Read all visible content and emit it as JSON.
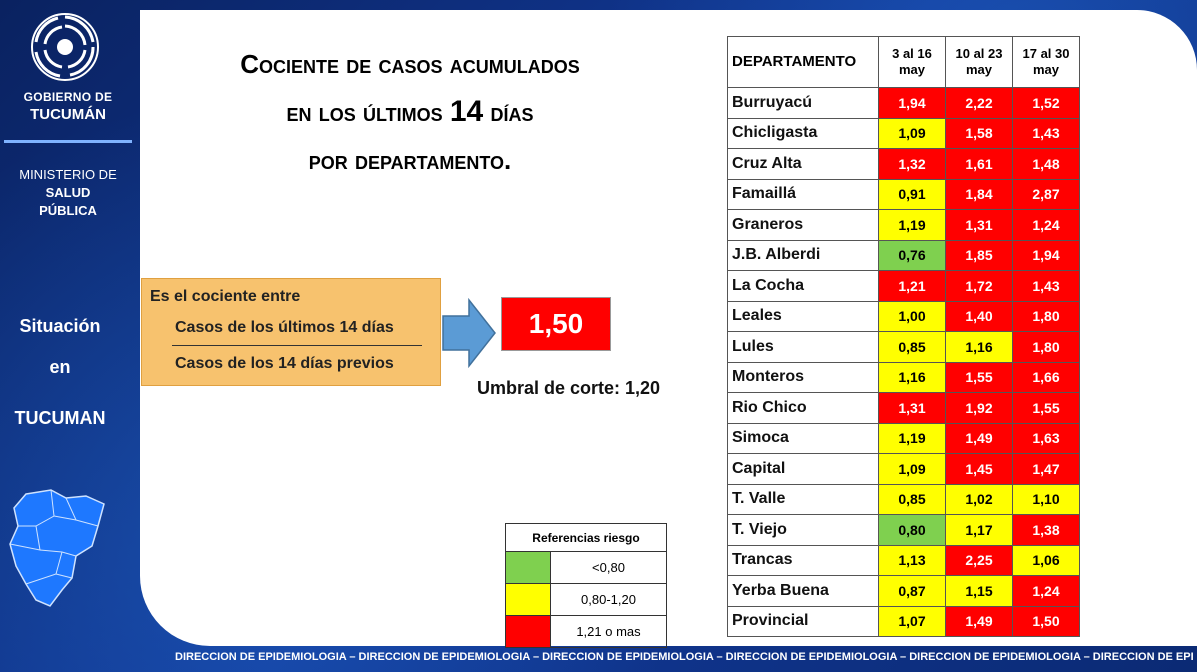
{
  "sidebar": {
    "org_line1": "GOBIERNO DE",
    "org_line2": "TUCUMÁN",
    "ministry_line1": "MINISTERIO DE",
    "ministry_line2": "SALUD",
    "ministry_line3": "PÚBLICA",
    "situation_line1": "Situación",
    "situation_line2": "en",
    "situation_line3": "TUCUMAN"
  },
  "title": {
    "line1_a": "Cociente de casos acumulados",
    "line2_a": "en los últimos ",
    "line2_b": "14",
    "line2_c": " días",
    "line3": "por departamento."
  },
  "formula": {
    "intro": "Es el cociente entre",
    "numerator": "Casos de los últimos 14 días",
    "denominator": "Casos de los 14 días previos"
  },
  "result": {
    "value": "1,50",
    "threshold": "Umbral de corte: 1,20"
  },
  "references": {
    "header": "Referencias riesgo",
    "items": [
      {
        "label": "<0,80",
        "color": "#7fd04f"
      },
      {
        "label": "0,80-1,20",
        "color": "#ffff00"
      },
      {
        "label": "1,21 o mas",
        "color": "#ff0000"
      }
    ]
  },
  "table": {
    "headers": [
      "DEPARTAMENTO",
      "3 al 16 may",
      "10 al 23 may",
      "17 al 30 may"
    ],
    "header_lines": [
      [
        "3 al 16",
        "may"
      ],
      [
        "10 al 23",
        "may"
      ],
      [
        "17 al 30",
        "may"
      ]
    ],
    "rows": [
      {
        "name": "Burruyacú",
        "values": [
          "1,94",
          "2,22",
          "1,52"
        ],
        "levels": [
          "r",
          "r",
          "r"
        ]
      },
      {
        "name": "Chicligasta",
        "values": [
          "1,09",
          "1,58",
          "1,43"
        ],
        "levels": [
          "y",
          "r",
          "r"
        ]
      },
      {
        "name": "Cruz Alta",
        "values": [
          "1,32",
          "1,61",
          "1,48"
        ],
        "levels": [
          "r",
          "r",
          "r"
        ]
      },
      {
        "name": "Famaillá",
        "values": [
          "0,91",
          "1,84",
          "2,87"
        ],
        "levels": [
          "y",
          "r",
          "r"
        ]
      },
      {
        "name": "Graneros",
        "values": [
          "1,19",
          "1,31",
          "1,24"
        ],
        "levels": [
          "y",
          "r",
          "r"
        ]
      },
      {
        "name": "J.B. Alberdi",
        "values": [
          "0,76",
          "1,85",
          "1,94"
        ],
        "levels": [
          "g",
          "r",
          "r"
        ]
      },
      {
        "name": "La Cocha",
        "values": [
          "1,21",
          "1,72",
          "1,43"
        ],
        "levels": [
          "r",
          "r",
          "r"
        ]
      },
      {
        "name": "Leales",
        "values": [
          "1,00",
          "1,40",
          "1,80"
        ],
        "levels": [
          "y",
          "r",
          "r"
        ]
      },
      {
        "name": "Lules",
        "values": [
          "0,85",
          "1,16",
          "1,80"
        ],
        "levels": [
          "y",
          "y",
          "r"
        ]
      },
      {
        "name": "Monteros",
        "values": [
          "1,16",
          "1,55",
          "1,66"
        ],
        "levels": [
          "y",
          "r",
          "r"
        ]
      },
      {
        "name": "Rio Chico",
        "values": [
          "1,31",
          "1,92",
          "1,55"
        ],
        "levels": [
          "r",
          "r",
          "r"
        ]
      },
      {
        "name": "Simoca",
        "values": [
          "1,19",
          "1,49",
          "1,63"
        ],
        "levels": [
          "y",
          "r",
          "r"
        ]
      },
      {
        "name": "Capital",
        "values": [
          "1,09",
          "1,45",
          "1,47"
        ],
        "levels": [
          "y",
          "r",
          "r"
        ]
      },
      {
        "name": "T. Valle",
        "values": [
          "0,85",
          "1,02",
          "1,10"
        ],
        "levels": [
          "y",
          "y",
          "y"
        ]
      },
      {
        "name": "T. Viejo",
        "values": [
          "0,80",
          "1,17",
          "1,38"
        ],
        "levels": [
          "g",
          "y",
          "r"
        ]
      },
      {
        "name": "Trancas",
        "values": [
          "1,13",
          "2,25",
          "1,06"
        ],
        "levels": [
          "y",
          "r",
          "y"
        ]
      },
      {
        "name": "Yerba Buena",
        "values": [
          "0,87",
          "1,15",
          "1,24"
        ],
        "levels": [
          "y",
          "y",
          "r"
        ]
      },
      {
        "name": "Provincial",
        "values": [
          "1,07",
          "1,49",
          "1,50"
        ],
        "levels": [
          "y",
          "r",
          "r"
        ]
      }
    ]
  },
  "footer": "DIRECCION DE EPIDEMIOLOGIA – DIRECCION DE EPIDEMIOLOGIA – DIRECCION DE EPIDEMIOLOGIA – DIRECCION DE EPIDEMIOLOGIA – DIRECCION DE EPIDEMIOLOGIA – DIRECCION DE EPI",
  "colors": {
    "red": "#ff0000",
    "yellow": "#ffff00",
    "green": "#7fd04f",
    "brand_blue": "#0b2a74"
  }
}
